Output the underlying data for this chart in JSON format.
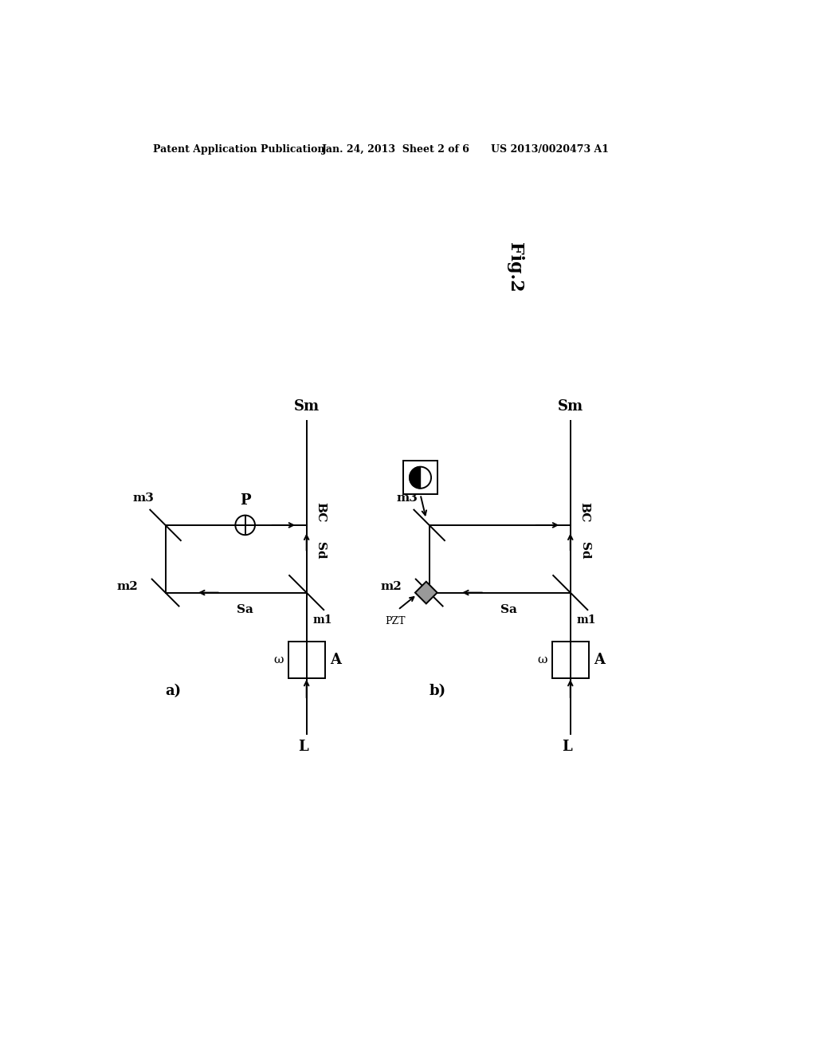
{
  "bg_color": "#ffffff",
  "header_text": "Patent Application Publication",
  "header_date": "Jan. 24, 2013  Sheet 2 of 6",
  "header_patent": "US 2013/0020473 A1",
  "fig_label": "Fig.2",
  "diagram_a_label": "a)",
  "diagram_b_label": "b)"
}
